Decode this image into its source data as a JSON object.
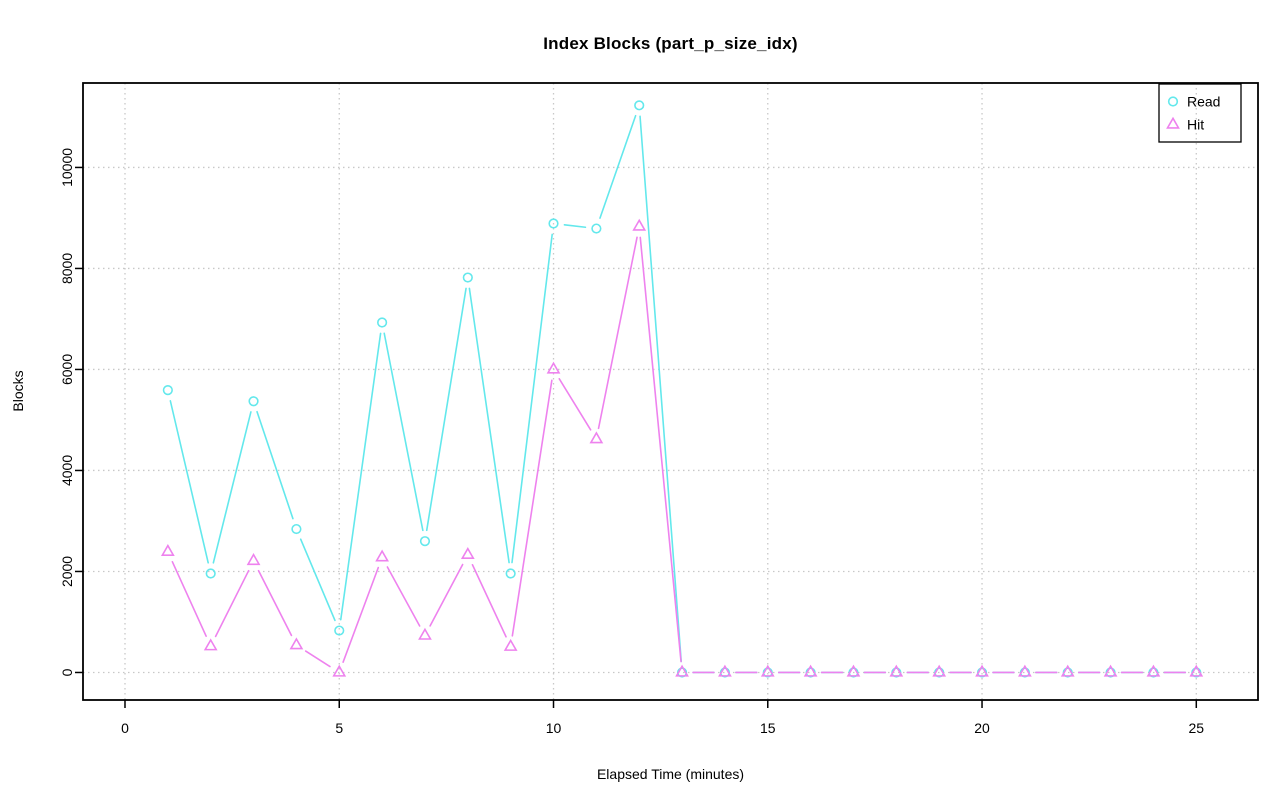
{
  "chart_data": {
    "type": "line",
    "title": "Index Blocks (part_p_size_idx)",
    "xlabel": "Elapsed Time (minutes)",
    "ylabel": "Blocks",
    "x": [
      1,
      2,
      3,
      4,
      5,
      6,
      7,
      8,
      9,
      10,
      11,
      12,
      13,
      14,
      15,
      16,
      17,
      18,
      19,
      20,
      21,
      22,
      23,
      24,
      25
    ],
    "series": [
      {
        "name": "Read",
        "marker": "circle",
        "color": "#63e8ec",
        "values": [
          5590,
          1960,
          5370,
          2840,
          830,
          6930,
          2600,
          7820,
          1960,
          8890,
          8790,
          11230,
          0,
          0,
          0,
          0,
          0,
          0,
          0,
          0,
          0,
          0,
          0,
          0,
          0
        ]
      },
      {
        "name": "Hit",
        "marker": "triangle",
        "color": "#ee82ee",
        "values": [
          2390,
          520,
          2210,
          540,
          0,
          2280,
          730,
          2330,
          510,
          6000,
          4620,
          8830,
          0,
          0,
          0,
          0,
          0,
          0,
          0,
          0,
          0,
          0,
          0,
          0,
          0
        ]
      }
    ],
    "xticks": [
      0,
      5,
      10,
      15,
      20,
      25
    ],
    "yticks": [
      0,
      2000,
      4000,
      6000,
      8000,
      10000
    ],
    "xlim": [
      -0.98,
      26.44
    ],
    "ylim": [
      -545,
      11672
    ],
    "grid": true,
    "grid_color": "#c8c8c8",
    "axis_color": "#000000",
    "background_color": "#ffffff",
    "legend": {
      "position": "top-right",
      "items": [
        "Read",
        "Hit"
      ]
    }
  }
}
